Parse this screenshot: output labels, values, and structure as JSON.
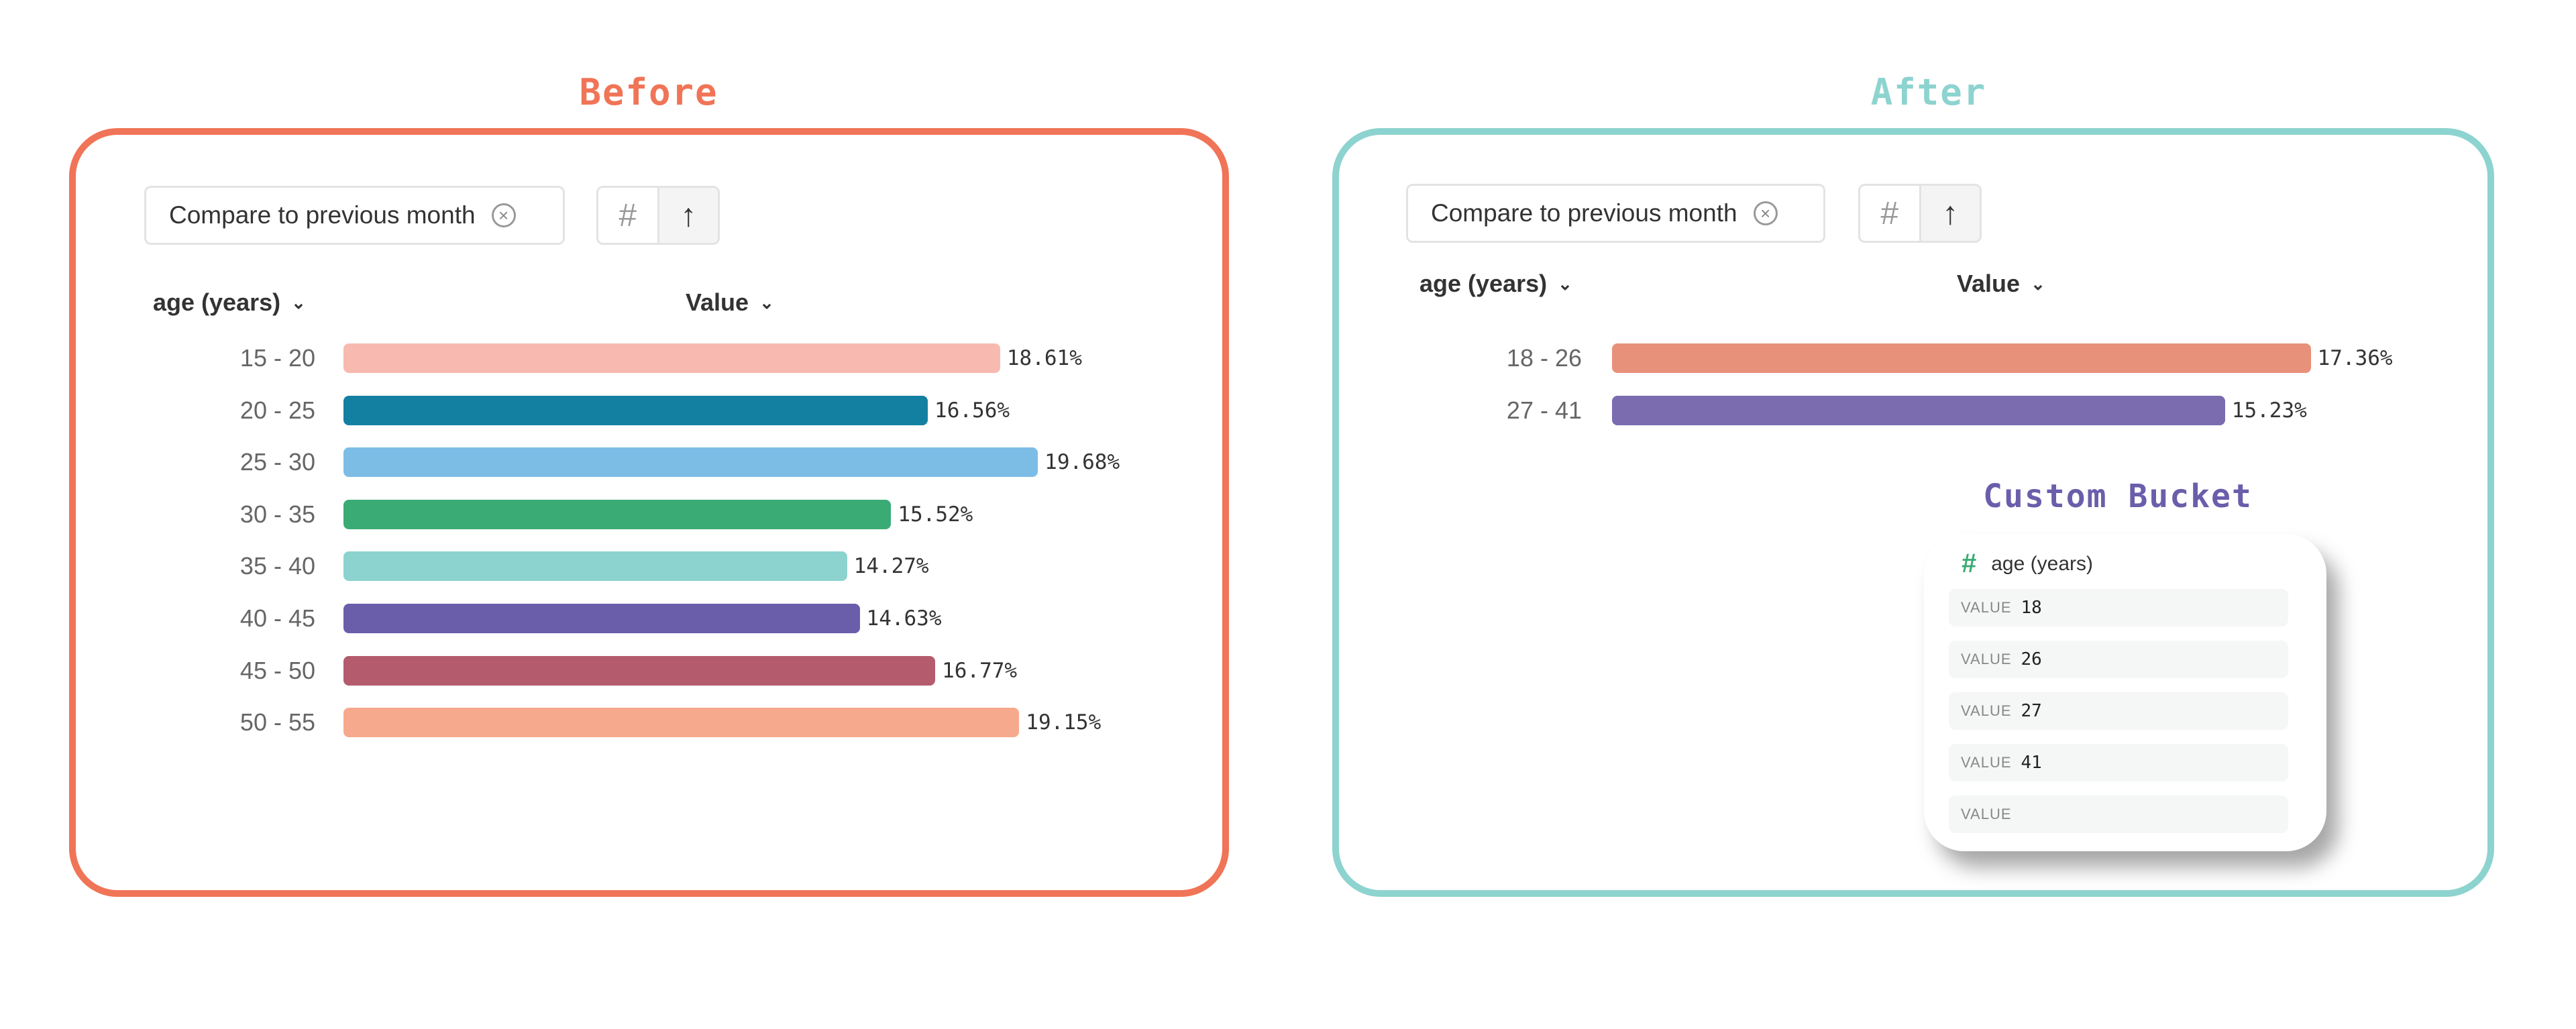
{
  "before": {
    "title": "Before",
    "frame_color": "#F07457",
    "compare_label": "Compare to previous month",
    "icons": [
      "clear-icon",
      "hash-icon",
      "sort-icon"
    ],
    "col_dimension": "age (years)",
    "col_value": "Value"
  },
  "after": {
    "title": "After",
    "frame_color": "#8DD3CF",
    "compare_label": "Compare to previous month",
    "icons": [
      "clear-icon",
      "hash-icon",
      "sort-icon"
    ],
    "col_dimension": "age (years)",
    "col_value": "Value"
  },
  "custom_bucket": {
    "title": "Custom Bucket",
    "title_color": "#6A5EAB",
    "field": "age (years)",
    "value_label": "VALUE",
    "values": [
      "18",
      "26",
      "27",
      "41",
      ""
    ]
  },
  "chart_data": [
    {
      "type": "bar",
      "orientation": "horizontal",
      "categories": [
        "15 - 20",
        "20 - 25",
        "25 - 30",
        "30 - 35",
        "35 - 40",
        "40 - 45",
        "45 - 50",
        "50 - 55"
      ],
      "values": [
        18.61,
        16.56,
        19.68,
        15.52,
        14.27,
        14.63,
        16.77,
        19.15
      ],
      "labels": [
        "18.61%",
        "16.56%",
        "19.68%",
        "15.52%",
        "14.27%",
        "14.63%",
        "16.77%",
        "19.15%"
      ],
      "colors": [
        "#F8BAB0",
        "#1380A1",
        "#7CBDE6",
        "#3AAB74",
        "#8CD3CF",
        "#6A5EAB",
        "#B45B6E",
        "#F7A98D"
      ],
      "xlabel": "Value",
      "ylabel": "age (years)",
      "grid": false
    },
    {
      "type": "bar",
      "orientation": "horizontal",
      "categories": [
        "18 - 26",
        "27 - 41"
      ],
      "values": [
        17.36,
        15.23
      ],
      "labels": [
        "17.36%",
        "15.23%"
      ],
      "colors": [
        "#E8917A",
        "#7B6CB0"
      ],
      "xlabel": "Value",
      "ylabel": "age (years)",
      "grid": false
    }
  ]
}
